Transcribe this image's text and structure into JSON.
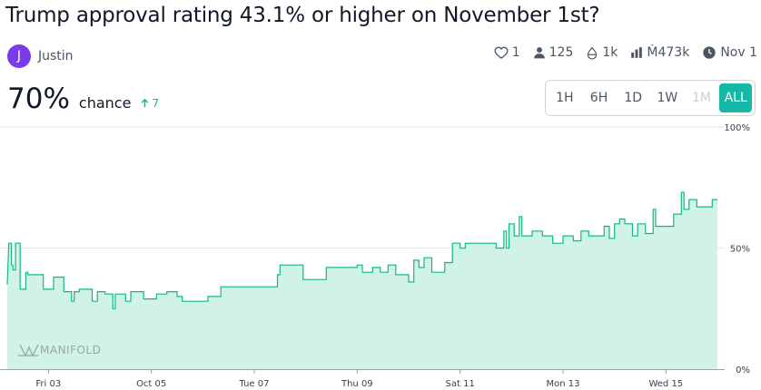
{
  "market": {
    "title": "Trump approval rating 43.1% or higher on November 1st?",
    "author": {
      "initial": "J",
      "name": "Justin"
    },
    "stats": {
      "likes": "1",
      "traders": "125",
      "liquidity": "1k",
      "volume": "Ṁ473k",
      "close_date": "Nov 1"
    },
    "probability": {
      "value": "70%",
      "label": "chance",
      "change": "7",
      "change_color": "#11b981"
    },
    "time_ranges": [
      {
        "label": "1H",
        "state": "normal"
      },
      {
        "label": "6H",
        "state": "normal"
      },
      {
        "label": "1D",
        "state": "normal"
      },
      {
        "label": "1W",
        "state": "normal"
      },
      {
        "label": "1M",
        "state": "disabled"
      },
      {
        "label": "ALL",
        "state": "active"
      }
    ],
    "watermark": "MANIFOLD",
    "accent_color": "#14b8a6"
  },
  "chart_data": {
    "type": "area",
    "y_unit": "%",
    "ylim": [
      0,
      100
    ],
    "y_ticks": [
      {
        "value": 100,
        "label": "100%"
      },
      {
        "value": 50,
        "label": "50%"
      },
      {
        "value": 0,
        "label": "0%"
      }
    ],
    "x_ticks": [
      "Fri 03",
      "Oct 05",
      "Tue 07",
      "Thu 09",
      "Sat 11",
      "Mon 13",
      "Wed 15"
    ],
    "x_tick_days": [
      3,
      5,
      7,
      9,
      11,
      13,
      15
    ],
    "xlim_days": [
      2.2,
      16.0
    ],
    "grid": "horizontal",
    "line_color": "#11b981",
    "fill_color": "#d1f2e6",
    "series": [
      {
        "points": [
          [
            2.2,
            35
          ],
          [
            2.23,
            52
          ],
          [
            2.28,
            52
          ],
          [
            2.28,
            43
          ],
          [
            2.31,
            43
          ],
          [
            2.31,
            41
          ],
          [
            2.36,
            41
          ],
          [
            2.36,
            52
          ],
          [
            2.45,
            52
          ],
          [
            2.45,
            33
          ],
          [
            2.56,
            33
          ],
          [
            2.56,
            40
          ],
          [
            2.6,
            40
          ],
          [
            2.6,
            39
          ],
          [
            2.9,
            39
          ],
          [
            2.9,
            33
          ],
          [
            3.1,
            33
          ],
          [
            3.1,
            38
          ],
          [
            3.3,
            38
          ],
          [
            3.3,
            32
          ],
          [
            3.45,
            32
          ],
          [
            3.45,
            28
          ],
          [
            3.5,
            28
          ],
          [
            3.5,
            32
          ],
          [
            3.6,
            32
          ],
          [
            3.6,
            33
          ],
          [
            3.85,
            33
          ],
          [
            3.85,
            28
          ],
          [
            3.95,
            28
          ],
          [
            3.95,
            32
          ],
          [
            4.1,
            32
          ],
          [
            4.1,
            31
          ],
          [
            4.25,
            31
          ],
          [
            4.25,
            25
          ],
          [
            4.3,
            25
          ],
          [
            4.3,
            31
          ],
          [
            4.5,
            31
          ],
          [
            4.5,
            28
          ],
          [
            4.6,
            28
          ],
          [
            4.6,
            32
          ],
          [
            4.85,
            32
          ],
          [
            4.85,
            29
          ],
          [
            5.1,
            29
          ],
          [
            5.1,
            31
          ],
          [
            5.3,
            31
          ],
          [
            5.3,
            32
          ],
          [
            5.5,
            32
          ],
          [
            5.5,
            30
          ],
          [
            5.6,
            30
          ],
          [
            5.6,
            28
          ],
          [
            6.1,
            28
          ],
          [
            6.1,
            30
          ],
          [
            6.35,
            30
          ],
          [
            6.35,
            34
          ],
          [
            7.45,
            34
          ],
          [
            7.45,
            39
          ],
          [
            7.5,
            39
          ],
          [
            7.5,
            43
          ],
          [
            7.95,
            43
          ],
          [
            7.95,
            37
          ],
          [
            8.4,
            37
          ],
          [
            8.4,
            42
          ],
          [
            9.0,
            42
          ],
          [
            9.0,
            43
          ],
          [
            9.1,
            43
          ],
          [
            9.1,
            40
          ],
          [
            9.3,
            40
          ],
          [
            9.3,
            42
          ],
          [
            9.45,
            42
          ],
          [
            9.45,
            40
          ],
          [
            9.6,
            40
          ],
          [
            9.6,
            43
          ],
          [
            9.75,
            43
          ],
          [
            9.75,
            39
          ],
          [
            10.0,
            39
          ],
          [
            10.0,
            36
          ],
          [
            10.1,
            36
          ],
          [
            10.1,
            45
          ],
          [
            10.2,
            45
          ],
          [
            10.2,
            42
          ],
          [
            10.3,
            42
          ],
          [
            10.3,
            46
          ],
          [
            10.45,
            46
          ],
          [
            10.45,
            40
          ],
          [
            10.7,
            40
          ],
          [
            10.7,
            44
          ],
          [
            10.85,
            44
          ],
          [
            10.85,
            52
          ],
          [
            11.0,
            52
          ],
          [
            11.0,
            50
          ],
          [
            11.1,
            50
          ],
          [
            11.1,
            52
          ],
          [
            11.7,
            52
          ],
          [
            11.7,
            50
          ],
          [
            11.85,
            50
          ],
          [
            11.85,
            57
          ],
          [
            11.9,
            57
          ],
          [
            11.9,
            50
          ],
          [
            11.95,
            50
          ],
          [
            11.95,
            60
          ],
          [
            12.05,
            60
          ],
          [
            12.05,
            55
          ],
          [
            12.15,
            55
          ],
          [
            12.15,
            63
          ],
          [
            12.2,
            63
          ],
          [
            12.2,
            55
          ],
          [
            12.4,
            55
          ],
          [
            12.4,
            57
          ],
          [
            12.6,
            57
          ],
          [
            12.6,
            55
          ],
          [
            12.8,
            55
          ],
          [
            12.8,
            52
          ],
          [
            13.0,
            52
          ],
          [
            13.0,
            55
          ],
          [
            13.2,
            55
          ],
          [
            13.2,
            53
          ],
          [
            13.35,
            53
          ],
          [
            13.35,
            57
          ],
          [
            13.5,
            57
          ],
          [
            13.5,
            55
          ],
          [
            13.8,
            55
          ],
          [
            13.8,
            59
          ],
          [
            13.9,
            59
          ],
          [
            13.9,
            54
          ],
          [
            14.0,
            54
          ],
          [
            14.0,
            60
          ],
          [
            14.1,
            60
          ],
          [
            14.1,
            62
          ],
          [
            14.2,
            62
          ],
          [
            14.2,
            60
          ],
          [
            14.35,
            60
          ],
          [
            14.35,
            55
          ],
          [
            14.45,
            55
          ],
          [
            14.45,
            60
          ],
          [
            14.6,
            60
          ],
          [
            14.6,
            56
          ],
          [
            14.75,
            56
          ],
          [
            14.75,
            66
          ],
          [
            14.8,
            66
          ],
          [
            14.8,
            59
          ],
          [
            15.15,
            59
          ],
          [
            15.15,
            64
          ],
          [
            15.3,
            64
          ],
          [
            15.3,
            73
          ],
          [
            15.35,
            73
          ],
          [
            15.35,
            66
          ],
          [
            15.45,
            66
          ],
          [
            15.45,
            70
          ],
          [
            15.6,
            70
          ],
          [
            15.6,
            67
          ],
          [
            15.9,
            67
          ],
          [
            15.9,
            70
          ],
          [
            16.0,
            70
          ]
        ]
      }
    ]
  }
}
